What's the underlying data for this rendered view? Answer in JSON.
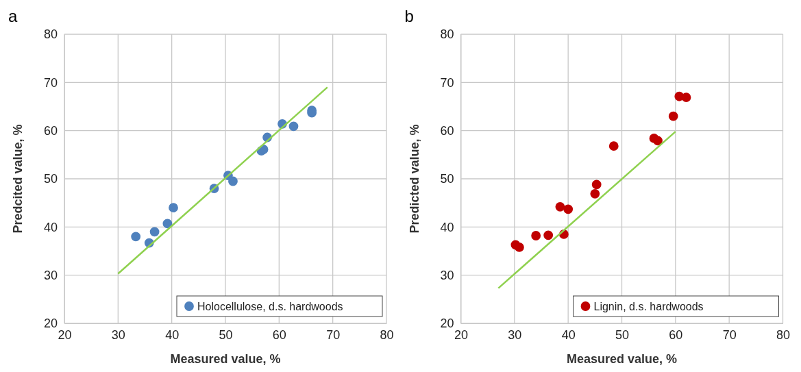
{
  "chart_data": [
    {
      "type": "scatter",
      "title": "a",
      "xlabel": "Measured value, %",
      "ylabel": "Predcited value, %",
      "xlim": [
        20,
        80
      ],
      "ylim": [
        20,
        80
      ],
      "xticks": [
        20,
        30,
        40,
        50,
        60,
        70,
        80
      ],
      "yticks": [
        20,
        30,
        40,
        50,
        60,
        70,
        80
      ],
      "grid": true,
      "legend": "bottom right",
      "series": [
        {
          "name": "Holocellulose, d.s. hardwoods",
          "color": "#4f81bd",
          "marker": "circle",
          "x": [
            33.3,
            35.8,
            36.8,
            39.2,
            40.3,
            47.9,
            50.5,
            51.4,
            56.7,
            57.1,
            57.8,
            60.6,
            62.7,
            66.1,
            66.1
          ],
          "values": [
            38,
            36.7,
            39,
            40.7,
            44,
            48,
            50.7,
            49.5,
            55.8,
            56.1,
            58.6,
            61.4,
            60.9,
            64.2,
            63.7
          ]
        },
        {
          "type": "line",
          "color": "#8fd14f",
          "marker": "none",
          "x": [
            30,
            69
          ],
          "values": [
            30.3,
            69
          ]
        }
      ]
    },
    {
      "type": "scatter",
      "title": "b",
      "xlabel": "Measured value, %",
      "ylabel": "Predicted value, %",
      "xlim": [
        20,
        80
      ],
      "ylim": [
        20,
        80
      ],
      "xticks": [
        20,
        30,
        40,
        50,
        60,
        70,
        80
      ],
      "yticks": [
        20,
        30,
        40,
        50,
        60,
        70,
        80
      ],
      "grid": true,
      "legend": "bottom right",
      "series": [
        {
          "name": "Lignin, d.s. hardwoods",
          "color": "#c00000",
          "marker": "circle",
          "x": [
            30.2,
            30.9,
            34,
            36.3,
            38.5,
            39.2,
            40,
            45,
            45.3,
            48.5,
            56,
            56.7,
            59.6,
            60.7,
            62
          ],
          "values": [
            36.3,
            35.8,
            38.2,
            38.3,
            44.2,
            38.5,
            43.7,
            46.9,
            48.8,
            56.8,
            58.4,
            57.9,
            63,
            67.1,
            66.9
          ]
        },
        {
          "type": "line",
          "color": "#8fd14f",
          "marker": "none",
          "x": [
            27,
            60
          ],
          "values": [
            27.3,
            59.8
          ]
        }
      ]
    }
  ]
}
